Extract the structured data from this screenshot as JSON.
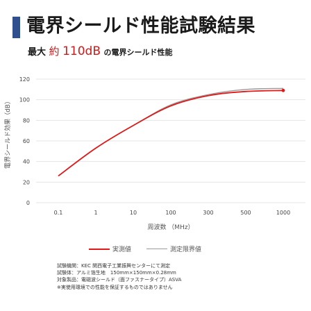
{
  "header": {
    "title": "電界シールド性能試験結果",
    "subtitle_prefix": "最大",
    "subtitle_approx": "約",
    "subtitle_value": "110dB",
    "subtitle_suffix": "の電界シールド性能"
  },
  "chart_data": {
    "type": "line",
    "title": "",
    "xlabel": "周波数 （MHz）",
    "ylabel": "電界シールド効果（dB）",
    "categories": [
      "0.1",
      "1",
      "10",
      "100",
      "300",
      "500",
      "1000"
    ],
    "ylim": [
      0,
      120
    ],
    "yticks": [
      "0",
      "20",
      "40",
      "60",
      "80",
      "100",
      "120"
    ],
    "grid": true,
    "series": [
      {
        "name": "実測値",
        "color": "#e01818",
        "values": [
          26,
          53,
          75,
          94,
          104,
          108,
          109
        ]
      },
      {
        "name": "測定限界値",
        "color": "#999999",
        "values": [
          26,
          53,
          75,
          95,
          105,
          110,
          111
        ]
      }
    ]
  },
  "legend": {
    "measured": "実測値",
    "limit": "測定限界値"
  },
  "notes": [
    "試験機関：KEC 関西電子工業振興センターにて測定",
    "試験体：アルミ箔生地　150mm×150mm×0.28mm",
    "対象製品：電磁波シールド（面ファスナータイプ）ASVA",
    "※実使用環境での性能を保証するものではありません"
  ]
}
